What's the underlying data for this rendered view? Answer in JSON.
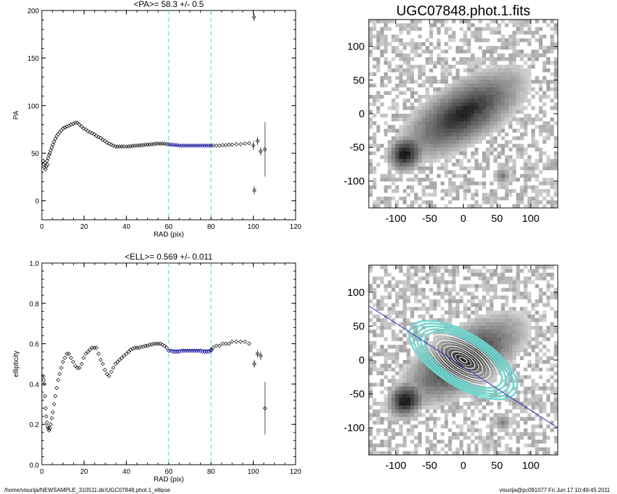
{
  "footer": {
    "path": "/home/visurija/NEWSAMPLE_310511.dir/UGC07848.phot.1_ellipse",
    "user_date": "visurija@pc091077  Fri Jun 17 10:49:45 2011"
  },
  "image_title": "UGC07848.phot.1.fits",
  "chart_data": [
    {
      "type": "scatter",
      "title": "<PA>=  58.3 +/-   0.5",
      "xlabel": "RAD (pix)",
      "ylabel": "PA",
      "xlim": [
        0,
        120
      ],
      "ylim": [
        -20,
        200
      ],
      "xticks": [
        0,
        20,
        40,
        60,
        80,
        100,
        120
      ],
      "yticks": [
        0,
        50,
        100,
        150,
        200
      ],
      "ytick_labels": [
        "0",
        "50",
        "100",
        "150",
        "200"
      ],
      "fit_range": [
        60,
        80
      ],
      "fit_value": 58.3,
      "series": [
        {
          "points": [
            [
              0.6,
              42
            ],
            [
              0.9,
              38
            ],
            [
              1.2,
              35
            ],
            [
              1.5,
              40
            ],
            [
              1.8,
              33
            ],
            [
              2.1,
              36
            ],
            [
              2.4,
              42
            ],
            [
              2.7,
              38
            ],
            [
              3,
              45
            ],
            [
              3.4,
              48
            ],
            [
              3.8,
              50
            ],
            [
              4.2,
              53
            ],
            [
              4.7,
              56
            ],
            [
              5.2,
              59
            ],
            [
              5.8,
              62
            ],
            [
              6.4,
              65
            ],
            [
              7,
              68
            ],
            [
              7.7,
              70
            ],
            [
              8.4,
              72
            ],
            [
              9.2,
              74
            ],
            [
              10,
              76
            ],
            [
              10.9,
              77
            ],
            [
              11.8,
              78
            ],
            [
              12.8,
              79
            ],
            [
              13.8,
              80
            ],
            [
              14.8,
              81
            ],
            [
              15.8,
              82
            ],
            [
              16.8,
              82
            ],
            [
              17.8,
              80
            ],
            [
              18.8,
              78
            ],
            [
              19.8,
              76
            ],
            [
              20.8,
              75
            ],
            [
              21.8,
              73
            ],
            [
              22.8,
              72
            ],
            [
              23.8,
              71
            ],
            [
              24.8,
              70
            ],
            [
              25.8,
              68
            ],
            [
              26.8,
              67
            ],
            [
              27.8,
              66
            ],
            [
              28.8,
              64
            ],
            [
              29.8,
              63
            ],
            [
              30.8,
              61
            ],
            [
              31.8,
              60
            ],
            [
              32.8,
              59
            ],
            [
              33.8,
              58
            ],
            [
              34.8,
              57
            ],
            [
              35.8,
              57
            ],
            [
              36.8,
              57
            ],
            [
              37.8,
              57
            ],
            [
              38.8,
              57
            ],
            [
              40,
              57
            ],
            [
              41,
              57
            ],
            [
              42,
              57.5
            ],
            [
              43,
              57.5
            ],
            [
              44,
              58
            ],
            [
              45,
              58
            ],
            [
              46,
              58
            ],
            [
              47,
              58.5
            ],
            [
              48,
              58.5
            ],
            [
              49,
              59
            ],
            [
              50,
              59
            ],
            [
              51,
              59
            ],
            [
              52,
              59.5
            ],
            [
              53,
              59.5
            ],
            [
              54,
              60
            ],
            [
              55,
              60
            ],
            [
              56,
              60
            ],
            [
              57,
              60
            ],
            [
              58,
              60
            ],
            [
              59,
              59.5
            ],
            [
              80,
              58
            ],
            [
              81,
              58
            ],
            [
              82.5,
              58
            ],
            [
              84,
              58
            ],
            [
              85.5,
              58.5
            ],
            [
              87,
              58.5
            ],
            [
              88.5,
              59
            ],
            [
              90,
              59
            ],
            [
              92,
              59.5
            ],
            [
              94,
              59.5
            ],
            [
              96,
              60
            ],
            [
              98,
              60.5
            ],
            [
              100,
              58
            ],
            [
              100.5,
              11
            ],
            [
              100.3,
              193
            ],
            [
              102,
              63
            ],
            [
              103.5,
              52
            ],
            [
              105.5,
              54
            ]
          ]
        },
        {
          "points": [
            [
              60,
              59.5
            ],
            [
              61,
              59
            ],
            [
              62,
              59
            ],
            [
              63,
              58.5
            ],
            [
              64,
              58.5
            ],
            [
              65,
              58
            ],
            [
              66,
              58
            ],
            [
              67,
              58
            ],
            [
              68,
              58
            ],
            [
              69,
              58
            ],
            [
              70,
              58
            ],
            [
              71,
              58
            ],
            [
              72,
              58
            ],
            [
              73,
              58
            ],
            [
              74,
              58
            ],
            [
              75,
              58
            ],
            [
              76,
              58
            ],
            [
              77,
              58
            ],
            [
              78,
              58
            ],
            [
              79,
              58
            ],
            [
              80,
              58
            ]
          ]
        }
      ]
    },
    {
      "type": "scatter",
      "title": "<ELL>= 0.569 +/-  0.011",
      "xlabel": "RAD (pix)",
      "ylabel": "ellipticity",
      "xlim": [
        0,
        120
      ],
      "ylim": [
        0,
        1
      ],
      "xticks": [
        0,
        20,
        40,
        60,
        80,
        100,
        120
      ],
      "yticks": [
        0,
        0.2,
        0.4,
        0.6,
        0.8,
        1.0
      ],
      "ytick_labels": [
        "0.0",
        "0.2",
        "0.4",
        "0.6",
        "0.8",
        "1.0"
      ],
      "fit_range": [
        60,
        80
      ],
      "fit_value": 0.569,
      "series": [
        {
          "points": [
            [
              0.6,
              0.44
            ],
            [
              0.9,
              0.42
            ],
            [
              1.2,
              0.4
            ],
            [
              1.5,
              0.34
            ],
            [
              1.8,
              0.28
            ],
            [
              2.1,
              0.24
            ],
            [
              2.4,
              0.21
            ],
            [
              2.7,
              0.19
            ],
            [
              3,
              0.18
            ],
            [
              3.4,
              0.17
            ],
            [
              3.8,
              0.18
            ],
            [
              4.2,
              0.2
            ],
            [
              4.7,
              0.23
            ],
            [
              5.2,
              0.26
            ],
            [
              5.8,
              0.3
            ],
            [
              6.4,
              0.34
            ],
            [
              7,
              0.38
            ],
            [
              7.7,
              0.42
            ],
            [
              8.4,
              0.45
            ],
            [
              9.2,
              0.48
            ],
            [
              10,
              0.51
            ],
            [
              10.9,
              0.53
            ],
            [
              11.8,
              0.55
            ],
            [
              12.8,
              0.55
            ],
            [
              13.8,
              0.53
            ],
            [
              14.8,
              0.51
            ],
            [
              15.8,
              0.49
            ],
            [
              16.8,
              0.48
            ],
            [
              17.8,
              0.48
            ],
            [
              18.8,
              0.5
            ],
            [
              19.8,
              0.53
            ],
            [
              20.8,
              0.55
            ],
            [
              21.8,
              0.56
            ],
            [
              22.8,
              0.57
            ],
            [
              23.8,
              0.58
            ],
            [
              24.8,
              0.58
            ],
            [
              25.8,
              0.58
            ],
            [
              26.8,
              0.55
            ],
            [
              27.8,
              0.52
            ],
            [
              28.8,
              0.5
            ],
            [
              29.8,
              0.47
            ],
            [
              30.8,
              0.45
            ],
            [
              31.8,
              0.44
            ],
            [
              32.8,
              0.46
            ],
            [
              33.8,
              0.48
            ],
            [
              34.8,
              0.5
            ],
            [
              35.8,
              0.51
            ],
            [
              36.8,
              0.52
            ],
            [
              37.8,
              0.53
            ],
            [
              38.8,
              0.54
            ],
            [
              40,
              0.55
            ],
            [
              41,
              0.56
            ],
            [
              42,
              0.57
            ],
            [
              43,
              0.575
            ],
            [
              44,
              0.58
            ],
            [
              45,
              0.58
            ],
            [
              46,
              0.58
            ],
            [
              47,
              0.585
            ],
            [
              48,
              0.585
            ],
            [
              49,
              0.59
            ],
            [
              50,
              0.59
            ],
            [
              51,
              0.595
            ],
            [
              52,
              0.595
            ],
            [
              53,
              0.6
            ],
            [
              54,
              0.6
            ],
            [
              55,
              0.6
            ],
            [
              56,
              0.6
            ],
            [
              57,
              0.595
            ],
            [
              58,
              0.59
            ],
            [
              59,
              0.58
            ],
            [
              80,
              0.57
            ],
            [
              81,
              0.58
            ],
            [
              82.5,
              0.59
            ],
            [
              84,
              0.59
            ],
            [
              85.5,
              0.6
            ],
            [
              87,
              0.6
            ],
            [
              88.5,
              0.6
            ],
            [
              90,
              0.61
            ],
            [
              92,
              0.61
            ],
            [
              94,
              0.61
            ],
            [
              96,
              0.61
            ],
            [
              98,
              0.6
            ],
            [
              100.5,
              0.5
            ],
            [
              102,
              0.55
            ],
            [
              103.5,
              0.54
            ],
            [
              105.5,
              0.28
            ]
          ]
        },
        {
          "points": [
            [
              60,
              0.565
            ],
            [
              61,
              0.565
            ],
            [
              62,
              0.56
            ],
            [
              63,
              0.56
            ],
            [
              64,
              0.56
            ],
            [
              65,
              0.56
            ],
            [
              66,
              0.565
            ],
            [
              67,
              0.565
            ],
            [
              68,
              0.565
            ],
            [
              69,
              0.565
            ],
            [
              70,
              0.565
            ],
            [
              71,
              0.565
            ],
            [
              72,
              0.565
            ],
            [
              73,
              0.565
            ],
            [
              74,
              0.565
            ],
            [
              75,
              0.565
            ],
            [
              76,
              0.56
            ],
            [
              77,
              0.56
            ],
            [
              78,
              0.56
            ],
            [
              79,
              0.56
            ],
            [
              80,
              0.565
            ]
          ]
        }
      ]
    },
    {
      "type": "heatmap",
      "title": "UGC07848.phot.1.fits",
      "xlim": [
        -140,
        140
      ],
      "ylim": [
        -140,
        140
      ],
      "xticks": [
        -100,
        -50,
        0,
        50,
        100
      ],
      "yticks": [
        -100,
        -50,
        0,
        50,
        100
      ],
      "galaxy": {
        "center": [
          0,
          0
        ],
        "pa_deg": 58.3,
        "ellipticity": 0.569
      }
    },
    {
      "type": "heatmap",
      "title": "",
      "xlim": [
        -140,
        140
      ],
      "ylim": [
        -140,
        140
      ],
      "xticks": [
        -100,
        -50,
        0,
        50,
        100
      ],
      "yticks": [
        -100,
        -50,
        0,
        50,
        100
      ],
      "galaxy": {
        "center": [
          0,
          0
        ],
        "pa_deg": 58.3,
        "ellipticity": 0.569
      }
    }
  ]
}
